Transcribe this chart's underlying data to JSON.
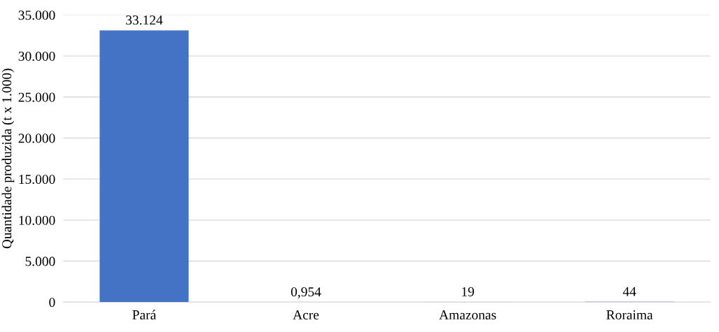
{
  "chart_data": {
    "type": "bar",
    "ylabel": "Quantidade produzida (t x 1.000)",
    "categories": [
      "Pará",
      "Acre",
      "Amazonas",
      "Roraima"
    ],
    "values": [
      33124,
      0.954,
      19,
      44
    ],
    "value_labels": [
      "33.124",
      "0,954",
      "19",
      "44"
    ],
    "color": "#4472c4",
    "ylim": [
      0,
      35000
    ],
    "yticks": [
      0,
      {
        "value": 5000,
        "label": "5.000"
      },
      {
        "value": 10000,
        "label": "10.000"
      },
      {
        "value": 15000,
        "label": "15.000"
      },
      {
        "value": 20000,
        "label": "20.000"
      },
      {
        "value": 25000,
        "label": "25.000"
      },
      {
        "value": 30000,
        "label": "30.000"
      },
      {
        "value": 35000,
        "label": "35.000"
      }
    ],
    "grid": "y"
  }
}
